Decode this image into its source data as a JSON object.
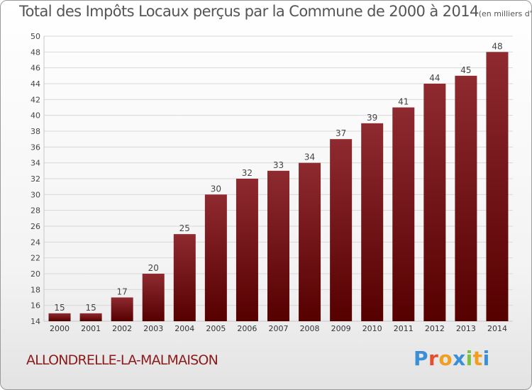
{
  "chart_data": {
    "type": "bar",
    "title": "Total des Impôts Locaux perçus par la Commune de 2000 à 2014",
    "unit": "(en milliers d'€)",
    "categories": [
      "2000",
      "2001",
      "2002",
      "2003",
      "2004",
      "2005",
      "2006",
      "2007",
      "2008",
      "2009",
      "2010",
      "2011",
      "2012",
      "2013",
      "2014"
    ],
    "values": [
      15,
      15,
      17,
      20,
      25,
      30,
      32,
      33,
      34,
      37,
      39,
      41,
      44,
      45,
      48
    ],
    "ylim": [
      14,
      50
    ],
    "yticks": [
      14,
      16,
      18,
      20,
      22,
      24,
      26,
      28,
      30,
      32,
      34,
      36,
      38,
      40,
      42,
      44,
      46,
      48,
      50
    ],
    "grid": true,
    "bar_color": "#7a0e12"
  },
  "footer": {
    "commune": "ALLONDRELLE-LA-MALMAISON",
    "logo_text": "Proxiti"
  },
  "colors": {
    "title": "#555555",
    "commune": "#8b1a1a",
    "logo": [
      "#3a8fd6",
      "#e64c2e",
      "#f0a020",
      "#3a8fd6",
      "#7cc242",
      "#f0a020",
      "#3a8fd6"
    ]
  }
}
